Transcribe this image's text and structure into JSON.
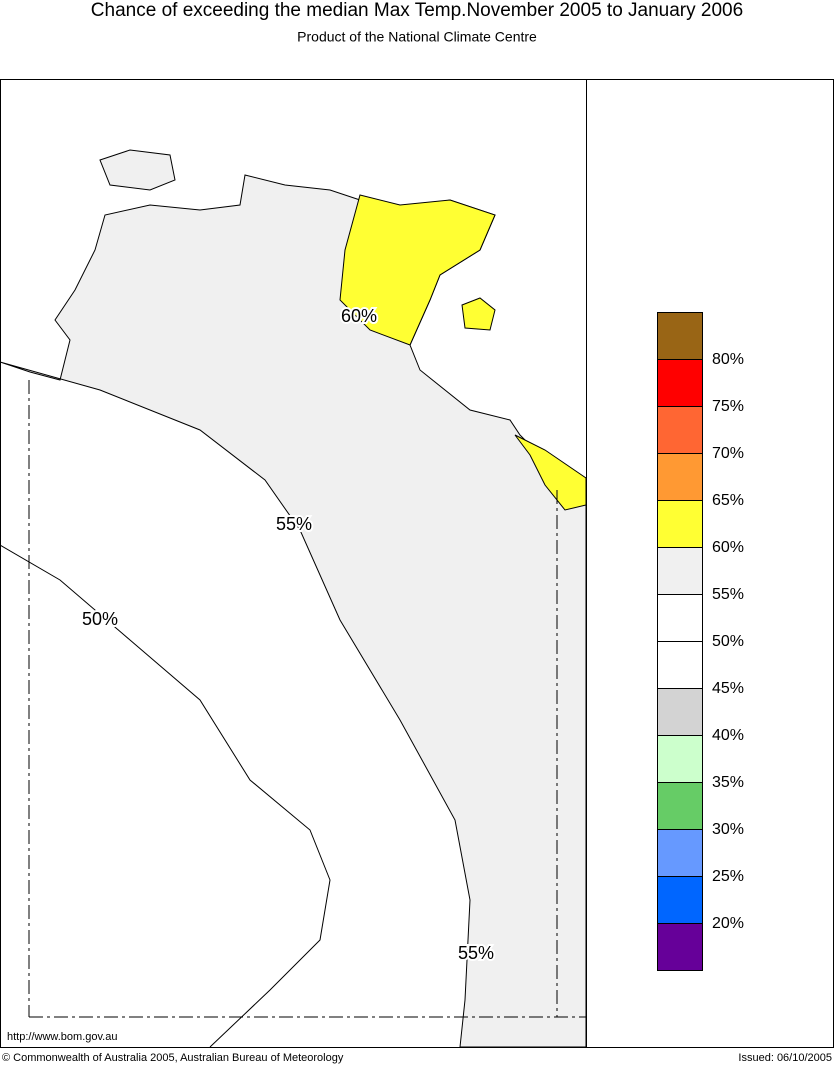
{
  "header": {
    "title": "Chance of exceeding the median Max Temp.November 2005 to January 2006",
    "subtitle": "Product of the National Climate Centre"
  },
  "map": {
    "contour_labels": [
      "60%",
      "55%",
      "50%",
      "55%"
    ]
  },
  "legend": {
    "labels": [
      "80%",
      "75%",
      "70%",
      "65%",
      "60%",
      "55%",
      "50%",
      "45%",
      "40%",
      "35%",
      "30%",
      "25%",
      "20%"
    ],
    "colors": [
      "#996515",
      "#ff0000",
      "#ff6633",
      "#ff9933",
      "#ffff33",
      "#f0f0f0",
      "#ffffff",
      "#ffffff",
      "#d3d3d3",
      "#ccffcc",
      "#66cc66",
      "#6699ff",
      "#0066ff",
      "#660099"
    ]
  },
  "footer": {
    "url": "http://www.bom.gov.au",
    "copyright": "© Commonwealth of Australia 2005, Australian Bureau of Meteorology",
    "issued": "Issued: 06/10/2005"
  }
}
